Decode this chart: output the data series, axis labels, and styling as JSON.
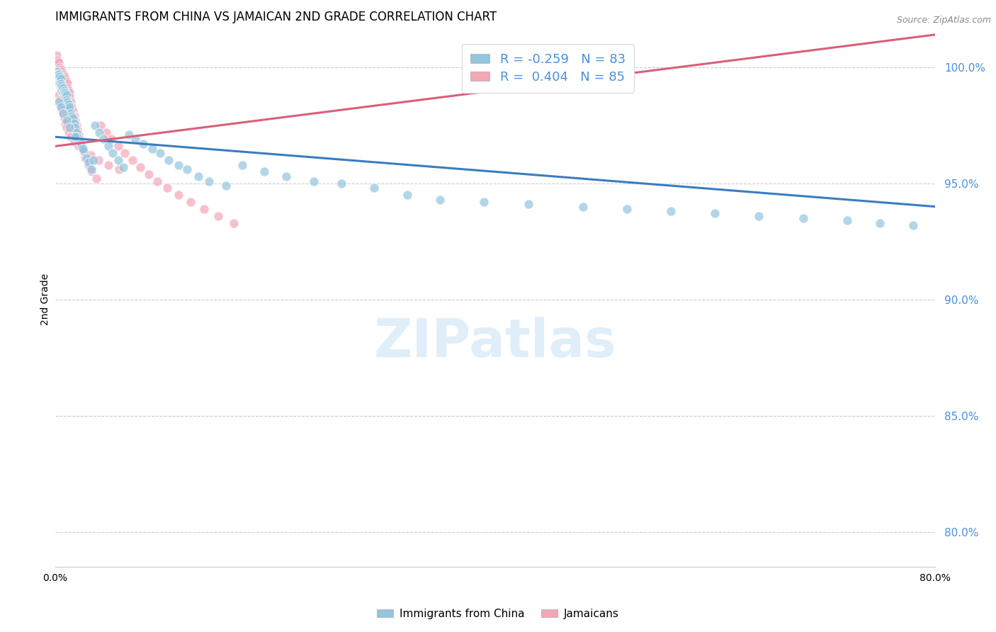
{
  "title": "IMMIGRANTS FROM CHINA VS JAMAICAN 2ND GRADE CORRELATION CHART",
  "source": "Source: ZipAtlas.com",
  "ylabel": "2nd Grade",
  "legend_label_blue": "Immigrants from China",
  "legend_label_pink": "Jamaicans",
  "r_blue": -0.259,
  "n_blue": 83,
  "r_pink": 0.404,
  "n_pink": 85,
  "blue_color": "#92c5de",
  "pink_color": "#f4a6b8",
  "trend_blue": "#3a7dbf",
  "trend_pink": "#d95f7a",
  "tick_color": "#4a90d9",
  "watermark": "ZIPatlas",
  "ytick_labels": [
    "80.0%",
    "85.0%",
    "90.0%",
    "95.0%",
    "100.0%"
  ],
  "ytick_values": [
    0.8,
    0.85,
    0.9,
    0.95,
    1.0
  ],
  "xlim": [
    0.0,
    0.8
  ],
  "ylim": [
    0.785,
    1.015
  ],
  "blue_trend_x0": 0.0,
  "blue_trend_y0": 0.97,
  "blue_trend_x1": 0.8,
  "blue_trend_y1": 0.94,
  "pink_trend_x0": 0.0,
  "pink_trend_y0": 0.966,
  "pink_trend_x1": 0.8,
  "pink_trend_y1": 1.014,
  "blue_scatter_x": [
    0.001,
    0.002,
    0.002,
    0.003,
    0.003,
    0.004,
    0.004,
    0.004,
    0.005,
    0.005,
    0.005,
    0.006,
    0.006,
    0.007,
    0.007,
    0.008,
    0.008,
    0.009,
    0.009,
    0.01,
    0.01,
    0.011,
    0.012,
    0.012,
    0.013,
    0.014,
    0.015,
    0.016,
    0.017,
    0.018,
    0.019,
    0.02,
    0.022,
    0.024,
    0.026,
    0.028,
    0.03,
    0.033,
    0.036,
    0.04,
    0.044,
    0.048,
    0.052,
    0.057,
    0.062,
    0.067,
    0.073,
    0.08,
    0.088,
    0.095,
    0.103,
    0.112,
    0.12,
    0.13,
    0.14,
    0.155,
    0.17,
    0.19,
    0.21,
    0.235,
    0.26,
    0.29,
    0.32,
    0.35,
    0.39,
    0.43,
    0.48,
    0.52,
    0.56,
    0.6,
    0.64,
    0.68,
    0.72,
    0.75,
    0.78,
    0.003,
    0.005,
    0.007,
    0.01,
    0.013,
    0.018,
    0.025,
    0.035
  ],
  "blue_scatter_y": [
    0.998,
    0.997,
    0.996,
    0.997,
    0.995,
    0.996,
    0.994,
    0.993,
    0.995,
    0.993,
    0.991,
    0.992,
    0.99,
    0.991,
    0.989,
    0.99,
    0.988,
    0.989,
    0.987,
    0.988,
    0.986,
    0.985,
    0.984,
    0.982,
    0.983,
    0.98,
    0.979,
    0.978,
    0.976,
    0.974,
    0.972,
    0.97,
    0.968,
    0.966,
    0.964,
    0.961,
    0.959,
    0.956,
    0.975,
    0.972,
    0.969,
    0.966,
    0.963,
    0.96,
    0.957,
    0.971,
    0.969,
    0.967,
    0.965,
    0.963,
    0.96,
    0.958,
    0.956,
    0.953,
    0.951,
    0.949,
    0.958,
    0.955,
    0.953,
    0.951,
    0.95,
    0.948,
    0.945,
    0.943,
    0.942,
    0.941,
    0.94,
    0.939,
    0.938,
    0.937,
    0.936,
    0.935,
    0.934,
    0.933,
    0.932,
    0.985,
    0.983,
    0.98,
    0.977,
    0.974,
    0.97,
    0.965,
    0.96
  ],
  "pink_scatter_x": [
    0.001,
    0.001,
    0.002,
    0.002,
    0.002,
    0.003,
    0.003,
    0.003,
    0.004,
    0.004,
    0.004,
    0.005,
    0.005,
    0.005,
    0.006,
    0.006,
    0.006,
    0.006,
    0.007,
    0.007,
    0.007,
    0.007,
    0.008,
    0.008,
    0.008,
    0.008,
    0.009,
    0.009,
    0.009,
    0.01,
    0.01,
    0.01,
    0.011,
    0.011,
    0.012,
    0.012,
    0.013,
    0.013,
    0.014,
    0.015,
    0.016,
    0.017,
    0.018,
    0.019,
    0.02,
    0.021,
    0.022,
    0.023,
    0.025,
    0.027,
    0.03,
    0.033,
    0.037,
    0.041,
    0.046,
    0.051,
    0.057,
    0.063,
    0.07,
    0.077,
    0.085,
    0.093,
    0.102,
    0.112,
    0.123,
    0.135,
    0.148,
    0.162,
    0.003,
    0.004,
    0.005,
    0.006,
    0.007,
    0.008,
    0.009,
    0.01,
    0.012,
    0.014,
    0.017,
    0.021,
    0.026,
    0.032,
    0.039,
    0.048,
    0.058
  ],
  "pink_scatter_y": [
    1.005,
    1.002,
    1.003,
    1.001,
    0.999,
    1.002,
    0.999,
    0.997,
    1.0,
    0.998,
    0.996,
    0.999,
    0.997,
    0.995,
    0.998,
    0.996,
    0.994,
    0.992,
    0.997,
    0.995,
    0.993,
    0.991,
    0.996,
    0.994,
    0.992,
    0.99,
    0.995,
    0.993,
    0.991,
    0.994,
    0.992,
    0.99,
    0.993,
    0.991,
    0.99,
    0.988,
    0.989,
    0.987,
    0.985,
    0.983,
    0.981,
    0.979,
    0.977,
    0.975,
    0.973,
    0.971,
    0.969,
    0.967,
    0.964,
    0.961,
    0.958,
    0.955,
    0.952,
    0.975,
    0.972,
    0.969,
    0.966,
    0.963,
    0.96,
    0.957,
    0.954,
    0.951,
    0.948,
    0.945,
    0.942,
    0.939,
    0.936,
    0.933,
    0.988,
    0.986,
    0.984,
    0.982,
    0.98,
    0.978,
    0.976,
    0.974,
    0.972,
    0.97,
    0.968,
    0.966,
    0.964,
    0.962,
    0.96,
    0.958,
    0.956
  ]
}
